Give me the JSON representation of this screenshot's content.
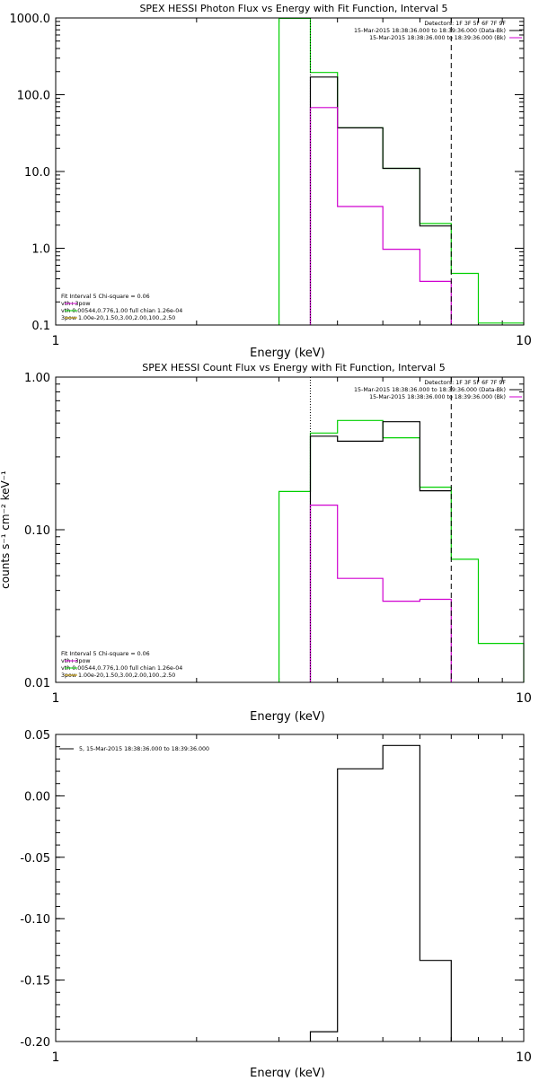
{
  "colors": {
    "black": "#000000",
    "magenta": "#d000d0",
    "green": "#00d000",
    "orange": "#d0a000"
  },
  "chart_data": [
    {
      "type": "line",
      "title": "SPEX HESSI Photon Flux vs Energy with Fit Function, Interval 5",
      "xlabel": "Energy (keV)",
      "ylabel": "",
      "xscale": "log",
      "yscale": "log",
      "xlim": [
        1,
        10
      ],
      "ylim": [
        0.1,
        1000
      ],
      "x_ticks": [
        {
          "v": 1,
          "label": "1"
        },
        {
          "v": 10,
          "label": "10"
        }
      ],
      "y_ticks": [
        {
          "v": 1000,
          "label": "1000.0"
        },
        {
          "v": 100,
          "label": "100.0"
        },
        {
          "v": 10,
          "label": "10.0"
        },
        {
          "v": 1,
          "label": "1.0"
        },
        {
          "v": 0.1,
          "label": "0.1"
        }
      ],
      "legend_tr": [
        {
          "text": "Detectors: 1F 3F 5F 6F 7F 9F",
          "color": ""
        },
        {
          "text": "15-Mar-2015 18:38:36.000 to 18:39:36.000 (Data-Bk)",
          "color": "black"
        },
        {
          "text": "15-Mar-2015 18:38:36.000 to 18:39:36.000 (Bk)",
          "color": "magenta"
        }
      ],
      "legend_bl": [
        {
          "text": "Fit Interval 5   Chi-square = 0.06",
          "color": ""
        },
        {
          "text": "vth+3pow",
          "color": "magenta"
        },
        {
          "text": "vth 0.00544,0.776,1.00  full chian 1.26e-04",
          "color": "green"
        },
        {
          "text": "3pow 1.00e-20,1.50,3.00,2.00,100.,2.50",
          "color": "orange"
        }
      ],
      "vlines": [
        {
          "x": 3.5,
          "style": "dotted"
        },
        {
          "x": 7.0,
          "style": "dashed"
        }
      ],
      "series": [
        {
          "color": "green",
          "edges": [
            3.0,
            3.5,
            4.0,
            5.0,
            6.0,
            7.0,
            8.0,
            10.0
          ],
          "values": [
            990,
            195,
            37,
            11,
            2.1,
            0.47,
            0.106
          ]
        },
        {
          "color": "black",
          "edges": [
            3.5,
            4.0,
            5.0,
            6.0,
            7.0
          ],
          "values": [
            170,
            37,
            11,
            1.95
          ]
        },
        {
          "color": "magenta",
          "edges": [
            3.5,
            4.0,
            5.0,
            6.0,
            7.0
          ],
          "values": [
            68,
            3.5,
            0.97,
            0.37
          ]
        }
      ]
    },
    {
      "type": "line",
      "title": "SPEX HESSI Count Flux vs Energy with Fit Function, Interval 5",
      "xlabel": "Energy (keV)",
      "ylabel": "counts s⁻¹ cm⁻² keV⁻¹",
      "xscale": "log",
      "yscale": "log",
      "xlim": [
        1,
        10
      ],
      "ylim": [
        0.01,
        1
      ],
      "x_ticks": [
        {
          "v": 1,
          "label": "1"
        },
        {
          "v": 10,
          "label": "10"
        }
      ],
      "y_ticks": [
        {
          "v": 1,
          "label": "1.00"
        },
        {
          "v": 0.1,
          "label": "0.10"
        },
        {
          "v": 0.01,
          "label": "0.01"
        }
      ],
      "legend_tr": [
        {
          "text": "Detectors: 1F 3F 5F 6F 7F 9F",
          "color": ""
        },
        {
          "text": "15-Mar-2015 18:38:36.000 to 18:39:36.000 (Data-Bk)",
          "color": "black"
        },
        {
          "text": "15-Mar-2015 18:38:36.000 to 18:39:36.000 (Bk)",
          "color": "magenta"
        }
      ],
      "legend_bl": [
        {
          "text": "Fit Interval 5   Chi-square = 0.06",
          "color": ""
        },
        {
          "text": "vth+3pow",
          "color": "magenta"
        },
        {
          "text": "vth 0.00544,0.776,1.00  full chian 1.26e-04",
          "color": "green"
        },
        {
          "text": "3pow 1.00e-20,1.50,3.00,2.00,100.,2.50",
          "color": "orange"
        }
      ],
      "vlines": [
        {
          "x": 3.5,
          "style": "dotted"
        },
        {
          "x": 7.0,
          "style": "dashed"
        }
      ],
      "series": [
        {
          "color": "green",
          "edges": [
            3.0,
            3.5,
            4.0,
            5.0,
            6.0,
            7.0,
            8.0,
            10.0
          ],
          "values": [
            0.178,
            0.43,
            0.52,
            0.4,
            0.19,
            0.064,
            0.018
          ]
        },
        {
          "color": "black",
          "edges": [
            3.5,
            4.0,
            5.0,
            6.0,
            7.0
          ],
          "values": [
            0.41,
            0.38,
            0.51,
            0.18
          ]
        },
        {
          "color": "magenta",
          "edges": [
            3.5,
            4.0,
            5.0,
            6.0,
            7.0
          ],
          "values": [
            0.145,
            0.048,
            0.034,
            0.035
          ]
        }
      ]
    },
    {
      "type": "line",
      "title": "",
      "xlabel": "Energy (keV)",
      "ylabel": "",
      "xscale": "log",
      "yscale": "linear",
      "xlim": [
        1,
        10
      ],
      "ylim": [
        -0.2,
        0.05
      ],
      "x_ticks": [
        {
          "v": 1,
          "label": "1"
        },
        {
          "v": 10,
          "label": "10"
        }
      ],
      "y_ticks": [
        {
          "v": 0.05,
          "label": "0.05"
        },
        {
          "v": 0.0,
          "label": "0.00"
        },
        {
          "v": -0.05,
          "label": "-0.05"
        },
        {
          "v": -0.1,
          "label": "-0.10"
        },
        {
          "v": -0.15,
          "label": "-0.15"
        },
        {
          "v": -0.2,
          "label": "-0.20"
        }
      ],
      "legend_tl": [
        {
          "text": "5, 15-Mar-2015 18:38:36.000 to 18:39:36.000",
          "color": "black"
        }
      ],
      "vlines": [],
      "series": [
        {
          "color": "black",
          "edges": [
            3.5,
            4.0,
            5.0,
            6.0,
            7.0
          ],
          "values": [
            -0.192,
            0.022,
            0.041,
            -0.134
          ]
        }
      ]
    }
  ]
}
